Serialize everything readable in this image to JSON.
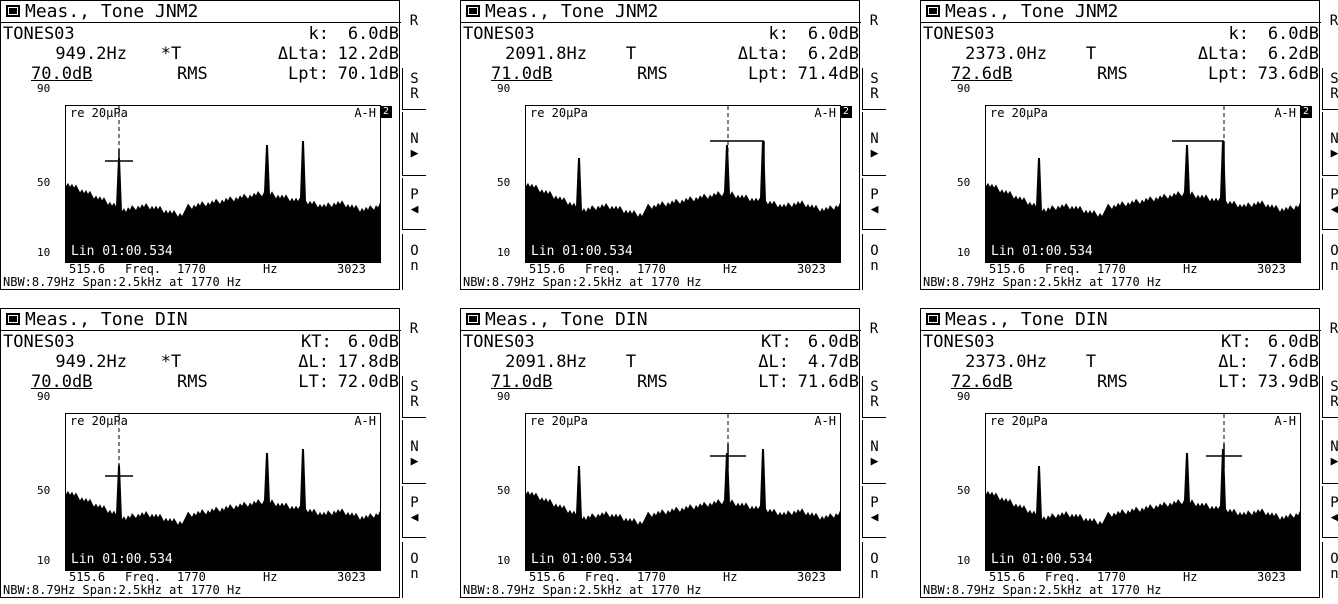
{
  "common": {
    "ref_label": "re 20µPa",
    "y_ticks": [
      "90",
      "50",
      "10"
    ],
    "time_label": "Lin 01:00.534",
    "freq_axis": {
      "start": "515.6",
      "label": "Freq.",
      "center": "1770",
      "unit": "Hz",
      "end": "3023"
    },
    "footer": "NBW:8.79Hz Span:2.5kHz at 1770 Hz",
    "softkeys": {
      "r": "R",
      "sr_1": "S",
      "sr_2": "R",
      "n": "N",
      "p": "P",
      "on_1": "O",
      "on_2": "n"
    },
    "icons": {
      "next": "triangle-right-icon",
      "prev": "triangle-left-icon",
      "window": "window-icon"
    }
  },
  "panels": [
    {
      "title": "Meas., Tone JNM2",
      "name": "TONES03",
      "k_label": "k:",
      "k_value": "6.0dB",
      "freq": "949.2Hz",
      "mark": "*T",
      "dl_label": "ΔLta:",
      "dl_value": "12.2dB",
      "level": "70.0dB",
      "mode": "RMS",
      "lt_label": "Lpt:",
      "lt_value": "70.1dB",
      "weighting": "A-H",
      "badge": "2"
    },
    {
      "title": "Meas., Tone JNM2",
      "name": "TONES03",
      "k_label": "k:",
      "k_value": "6.0dB",
      "freq": "2091.8Hz",
      "mark": "T",
      "dl_label": "ΔLta:",
      "dl_value": "6.2dB",
      "level": "71.0dB",
      "mode": "RMS",
      "lt_label": "Lpt:",
      "lt_value": "71.4dB",
      "weighting": "A-H",
      "badge": "2"
    },
    {
      "title": "Meas., Tone JNM2",
      "name": "TONES03",
      "k_label": "k:",
      "k_value": "6.0dB",
      "freq": "2373.0Hz",
      "mark": "T",
      "dl_label": "ΔLta:",
      "dl_value": "6.2dB",
      "level": "72.6dB",
      "mode": "RMS",
      "lt_label": "Lpt:",
      "lt_value": "73.6dB",
      "weighting": "A-H",
      "badge": "2"
    },
    {
      "title": "Meas., Tone DIN",
      "name": "TONES03",
      "k_label": "KT:",
      "k_value": "6.0dB",
      "freq": "949.2Hz",
      "mark": "*T",
      "dl_label": "ΔL:",
      "dl_value": "17.8dB",
      "level": "70.0dB",
      "mode": "RMS",
      "lt_label": "LT:",
      "lt_value": "72.0dB",
      "weighting": "A-H",
      "badge": ""
    },
    {
      "title": "Meas., Tone DIN",
      "name": "TONES03",
      "k_label": "KT:",
      "k_value": "6.0dB",
      "freq": "2091.8Hz",
      "mark": "T",
      "dl_label": "ΔL:",
      "dl_value": "4.7dB",
      "level": "71.0dB",
      "mode": "RMS",
      "lt_label": "LT:",
      "lt_value": "71.6dB",
      "weighting": "A-H",
      "badge": ""
    },
    {
      "title": "Meas., Tone DIN",
      "name": "TONES03",
      "k_label": "KT:",
      "k_value": "6.0dB",
      "freq": "2373.0Hz",
      "mark": "T",
      "dl_label": "ΔL:",
      "dl_value": "7.6dB",
      "level": "72.6dB",
      "mode": "RMS",
      "lt_label": "LT:",
      "lt_value": "73.9dB",
      "weighting": "A-H",
      "badge": ""
    }
  ]
}
